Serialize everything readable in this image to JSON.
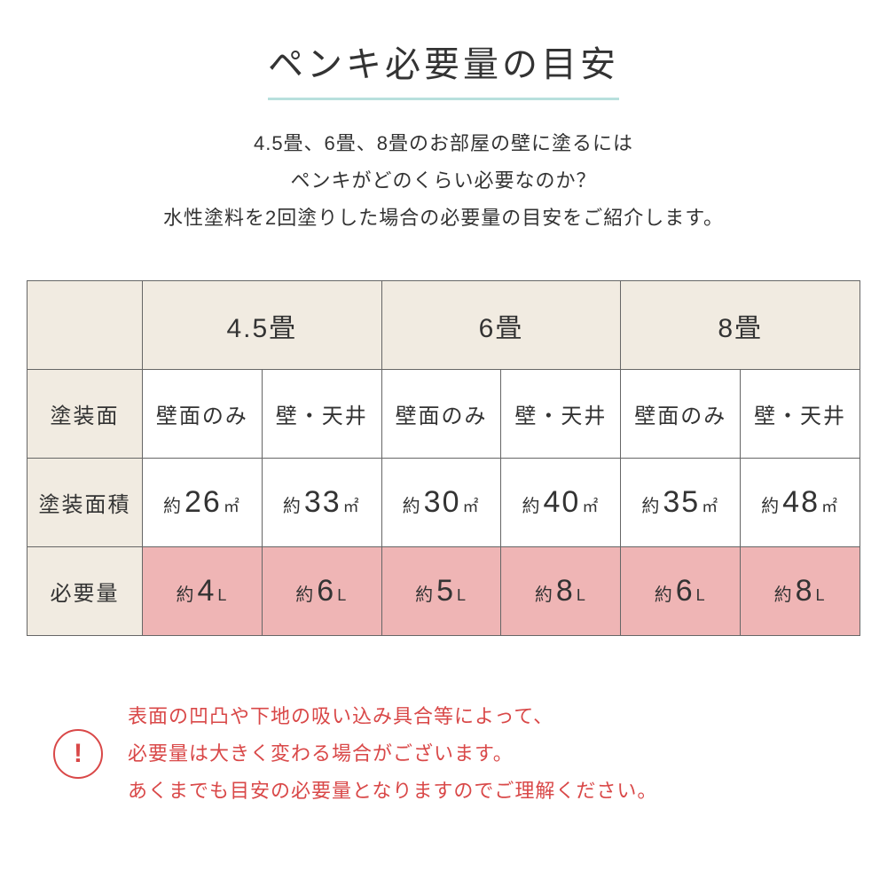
{
  "colors": {
    "title_underline": "#b8e0dd",
    "header_bg": "#f1ebe1",
    "highlight_bg": "#efb5b5",
    "border": "#666666",
    "text": "#333333",
    "alert": "#d94848",
    "background": "#ffffff"
  },
  "title": "ペンキ必要量の目安",
  "intro_line1": "4.5畳、6畳、8畳のお部屋の壁に塗るには",
  "intro_line2": "ペンキがどのくらい必要なのか？",
  "intro_line3": "水性塗料を2回塗りした場合の必要量の目安をご紹介します。",
  "table": {
    "col_headers": [
      "4.5畳",
      "6畳",
      "8畳"
    ],
    "row_labels": [
      "塗装面",
      "塗装面積",
      "必要量"
    ],
    "surface_options": [
      "壁面のみ",
      "壁・天井"
    ],
    "area_prefix": "約",
    "area_unit": "㎡",
    "area_values": [
      "26",
      "33",
      "30",
      "40",
      "35",
      "48"
    ],
    "amount_prefix": "約",
    "amount_unit": "L",
    "amount_values": [
      "4",
      "6",
      "5",
      "8",
      "6",
      "8"
    ]
  },
  "note": {
    "icon": "!",
    "line1": "表面の凹凸や下地の吸い込み具合等によって、",
    "line2": "必要量は大きく変わる場合がございます。",
    "line3": "あくまでも目安の必要量となりますのでご理解ください。"
  }
}
